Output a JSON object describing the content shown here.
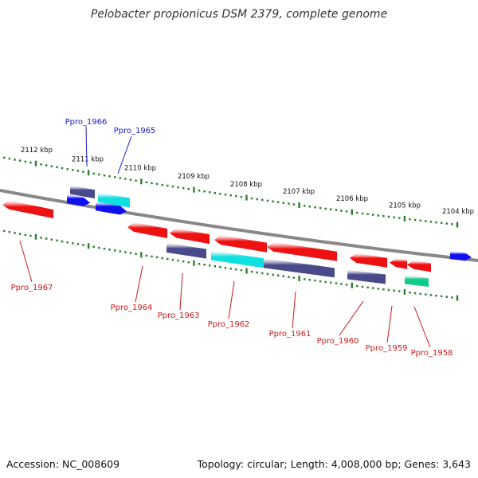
{
  "title": "Pelobacter propionicus DSM 2379, complete genome",
  "footer": {
    "accession": "Accession: NC_008609",
    "summary": "Topology: circular; Length: 4,008,000 bp; Genes: 3,643"
  },
  "colors": {
    "backbone": "#888888",
    "tick": "#2e7d2e",
    "forward_label": "#1a1acc",
    "reverse_label": "#cc1a1a",
    "red": "#ee1111",
    "blue": "#1010ee",
    "navy": "#4a4a8a",
    "cyan": "#11e0e0",
    "teal": "#11cc88"
  },
  "kbp_ticks": [
    {
      "label": "2112 kbp",
      "pos_kbp": 2112
    },
    {
      "label": "2111 kbp",
      "pos_kbp": 2111
    },
    {
      "label": "2110 kbp",
      "pos_kbp": 2110
    },
    {
      "label": "2109 kbp",
      "pos_kbp": 2109
    },
    {
      "label": "2108 kbp",
      "pos_kbp": 2108
    },
    {
      "label": "2107 kbp",
      "pos_kbp": 2107
    },
    {
      "label": "2106 kbp",
      "pos_kbp": 2106
    },
    {
      "label": "2105 kbp",
      "pos_kbp": 2105
    },
    {
      "label": "2104 kbp",
      "pos_kbp": 2104
    }
  ],
  "gene_labels": [
    {
      "name": "Ppro_1966",
      "strand": "forward"
    },
    {
      "name": "Ppro_1965",
      "strand": "forward"
    },
    {
      "name": "Ppro_1967",
      "strand": "reverse"
    },
    {
      "name": "Ppro_1964",
      "strand": "reverse"
    },
    {
      "name": "Ppro_1963",
      "strand": "reverse"
    },
    {
      "name": "Ppro_1962",
      "strand": "reverse"
    },
    {
      "name": "Ppro_1961",
      "strand": "reverse"
    },
    {
      "name": "Ppro_1960",
      "strand": "reverse"
    },
    {
      "name": "Ppro_1959",
      "strand": "reverse"
    },
    {
      "name": "Ppro_1958",
      "strand": "reverse"
    }
  ]
}
